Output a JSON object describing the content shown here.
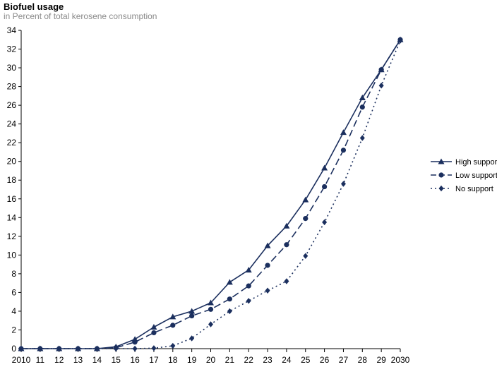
{
  "chart_data": {
    "type": "line",
    "title": "Biofuel usage",
    "subtitle": "in Percent of total kerosene consumption",
    "xlabel": "",
    "ylabel": "",
    "categories": [
      "2010",
      "11",
      "12",
      "13",
      "14",
      "15",
      "16",
      "17",
      "18",
      "19",
      "20",
      "21",
      "22",
      "23",
      "24",
      "25",
      "26",
      "27",
      "28",
      "29",
      "2030"
    ],
    "ylim": [
      0,
      34
    ],
    "yticks": [
      0,
      2,
      4,
      6,
      8,
      10,
      12,
      14,
      16,
      18,
      20,
      22,
      24,
      26,
      28,
      30,
      32,
      34
    ],
    "grid": false,
    "legend_position": "right",
    "series": [
      {
        "name": "High support",
        "marker": "triangle",
        "dash": "solid",
        "color": "#1b2f5e",
        "values": [
          0,
          0,
          0,
          0,
          0,
          0.2,
          1.0,
          2.3,
          3.4,
          4.0,
          4.9,
          7.1,
          8.4,
          11.0,
          13.1,
          15.9,
          19.3,
          23.1,
          26.8,
          29.8,
          33.0
        ]
      },
      {
        "name": "Low support",
        "marker": "circle",
        "dash": "dashed",
        "color": "#1b2f5e",
        "values": [
          0,
          0,
          0,
          0,
          0,
          0.1,
          0.7,
          1.7,
          2.5,
          3.5,
          4.2,
          5.3,
          6.7,
          8.9,
          11.1,
          13.9,
          17.3,
          21.2,
          25.8,
          29.8,
          33.0
        ]
      },
      {
        "name": "No support",
        "marker": "diamond",
        "dash": "dotted",
        "color": "#1b2f5e",
        "values": [
          0,
          0,
          0,
          0,
          0,
          0,
          0,
          0.05,
          0.3,
          1.1,
          2.6,
          4.0,
          5.1,
          6.2,
          7.2,
          9.9,
          13.5,
          17.6,
          22.5,
          28.1,
          32.9
        ]
      }
    ]
  }
}
